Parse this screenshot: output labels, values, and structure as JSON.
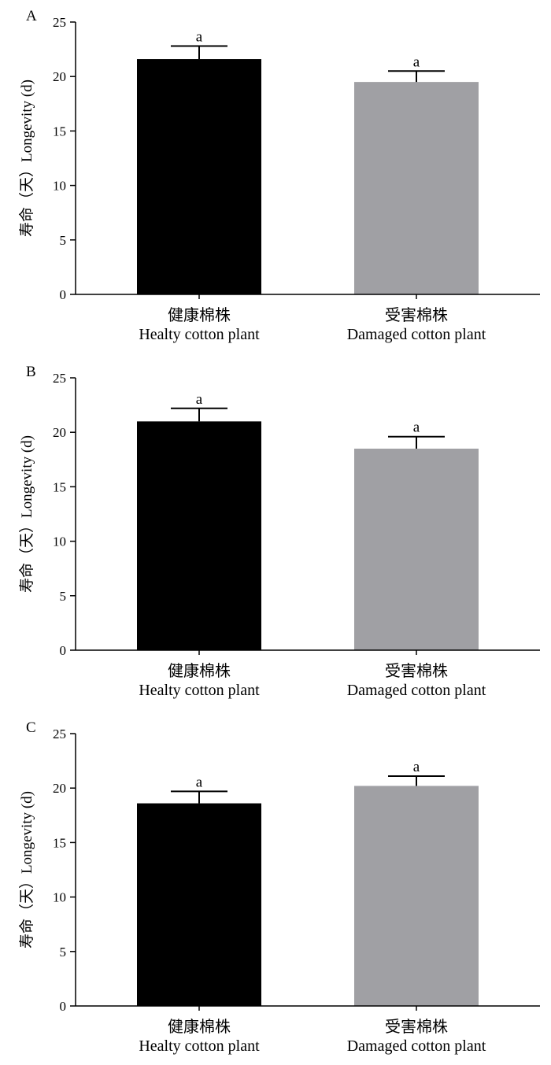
{
  "chart_data": [
    {
      "type": "bar",
      "panel": "A",
      "categories": [
        "健康棉株\nHealty cotton plant",
        "受害棉株\nDamaged cotton plant"
      ],
      "values": [
        21.6,
        19.5
      ],
      "errors": [
        1.2,
        1.0
      ],
      "significance": [
        "a",
        "a"
      ],
      "bar_colors": [
        "#000000",
        "#a0a0a4"
      ],
      "xlabel": "",
      "ylabel": "寿命（天）Longevity (d)",
      "ylim": [
        0,
        25
      ],
      "yticks": [
        0,
        5,
        10,
        15,
        20,
        25
      ],
      "grid": false
    },
    {
      "type": "bar",
      "panel": "B",
      "categories": [
        "健康棉株\nHealty cotton plant",
        "受害棉株\nDamaged cotton plant"
      ],
      "values": [
        21.0,
        18.5
      ],
      "errors": [
        1.2,
        1.1
      ],
      "significance": [
        "a",
        "a"
      ],
      "bar_colors": [
        "#000000",
        "#a0a0a4"
      ],
      "xlabel": "",
      "ylabel": "寿命（天）Longevity (d)",
      "ylim": [
        0,
        25
      ],
      "yticks": [
        0,
        5,
        10,
        15,
        20,
        25
      ],
      "grid": false
    },
    {
      "type": "bar",
      "panel": "C",
      "categories": [
        "健康棉株\nHealty cotton plant",
        "受害棉株\nDamaged cotton plant"
      ],
      "values": [
        18.6,
        20.2
      ],
      "errors": [
        1.1,
        0.9
      ],
      "significance": [
        "a",
        "a"
      ],
      "bar_colors": [
        "#000000",
        "#a0a0a4"
      ],
      "xlabel": "",
      "ylabel": "寿命（天）Longevity (d)",
      "ylim": [
        0,
        25
      ],
      "yticks": [
        0,
        5,
        10,
        15,
        20,
        25
      ],
      "grid": false
    }
  ]
}
